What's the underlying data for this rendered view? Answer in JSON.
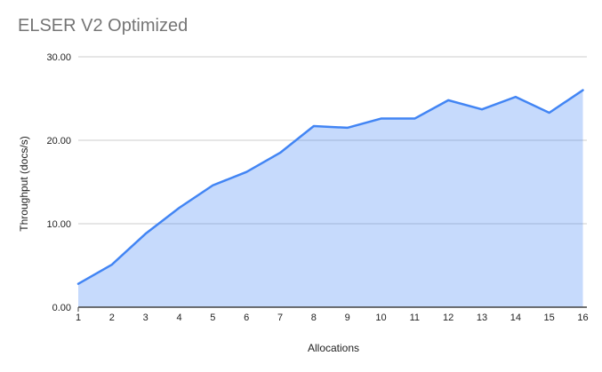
{
  "chart_data": {
    "type": "area",
    "title": "ELSER V2 Optimized",
    "xlabel": "Allocations",
    "ylabel": "Throughput (docs/s)",
    "categories": [
      1,
      2,
      3,
      4,
      5,
      6,
      7,
      8,
      9,
      10,
      11,
      12,
      13,
      14,
      15,
      16
    ],
    "series": [
      {
        "name": "ELSER V2 Optimized",
        "values": [
          2.8,
          5.1,
          8.8,
          11.9,
          14.6,
          16.2,
          18.5,
          21.7,
          21.5,
          22.6,
          22.6,
          24.8,
          23.7,
          25.2,
          23.3,
          26.0
        ]
      }
    ],
    "ylim": [
      0,
      30
    ],
    "ytick_values": [
      0,
      10,
      20,
      30
    ],
    "ytick_labels": [
      "0.00",
      "10.00",
      "20.00",
      "30.00"
    ],
    "xtick_labels": [
      "1",
      "2",
      "3",
      "4",
      "5",
      "6",
      "7",
      "8",
      "9",
      "10",
      "11",
      "12",
      "13",
      "14",
      "15",
      "16"
    ],
    "grid": true,
    "legend_position": "none",
    "colors": {
      "line": "#4285f4",
      "fill": "#4285f4",
      "fill_opacity": 0.3,
      "gridline": "#cccccc",
      "axis_line": "#424242",
      "tick_label": "#222222",
      "axis_title": "#222222",
      "title": "#757575"
    }
  }
}
